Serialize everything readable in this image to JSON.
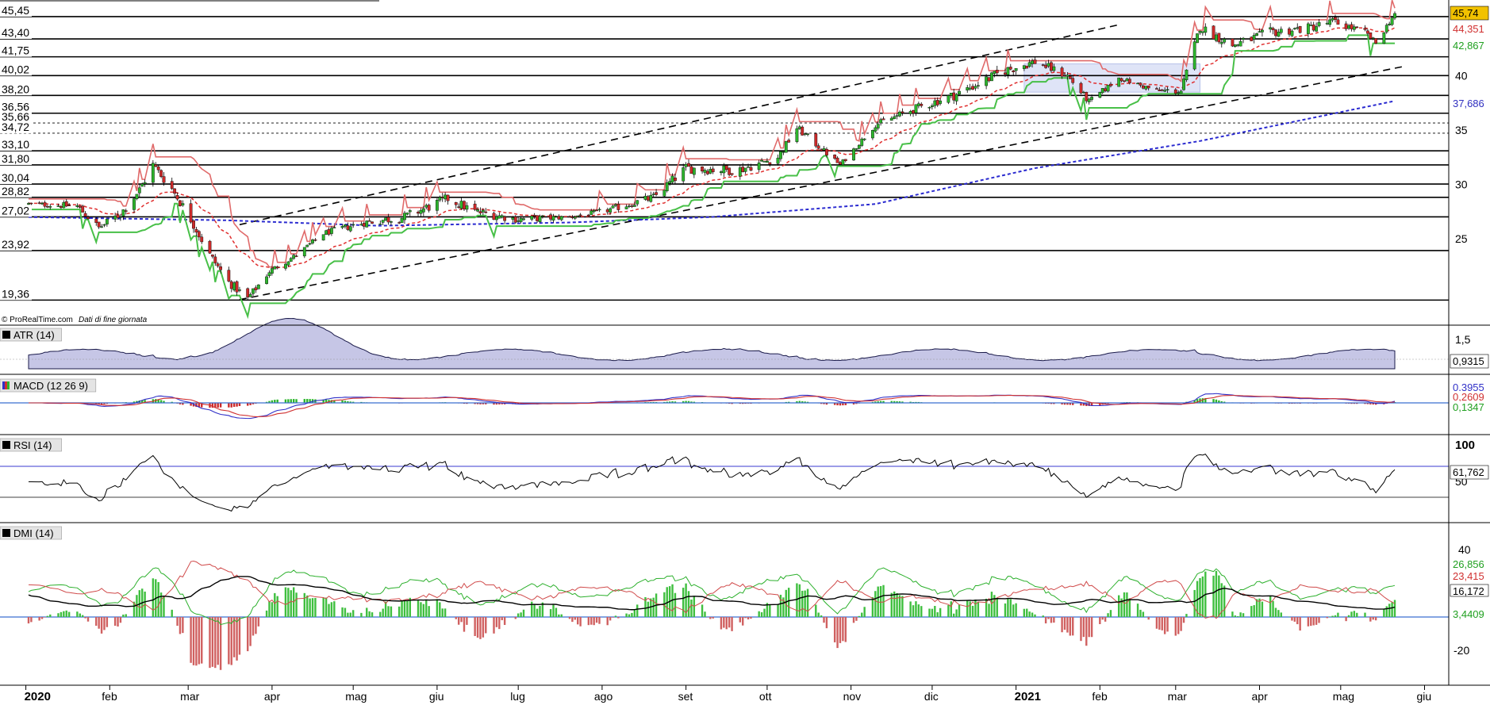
{
  "watermark": "© ProRealTime.com",
  "watermark_sub": "Dati di fine giornata",
  "x_axis": {
    "months": [
      "2020",
      "feb",
      "mar",
      "apr",
      "mag",
      "giu",
      "lug",
      "ago",
      "set",
      "ott",
      "nov",
      "dic",
      "2021",
      "feb",
      "mar",
      "apr",
      "mag",
      "giu"
    ],
    "bold_months": [
      "2020",
      "2021"
    ]
  },
  "price_panel": {
    "left_levels": [
      "45,45",
      "43,40",
      "41,75",
      "40,02",
      "38,20",
      "36,56",
      "35,66",
      "34,72",
      "33,10",
      "31,80",
      "30,04",
      "28,82",
      "27,02",
      "23,92",
      "19,36"
    ],
    "right_ticks": [
      "40",
      "35",
      "30",
      "25"
    ],
    "right_labels": [
      {
        "text": "45,74",
        "color": "#000000",
        "bg": "#f2c200"
      },
      {
        "text": "44,351",
        "color": "#d03030",
        "bg": "#ffffff"
      },
      {
        "text": "42,867",
        "color": "#20a020",
        "bg": "#ffffff"
      },
      {
        "text": "37,686",
        "color": "#3030c0",
        "bg": "#ffffff"
      }
    ]
  },
  "atr_panel": {
    "title": "ATR (14)",
    "tick": "1,5",
    "value_label": "0,9315"
  },
  "macd_panel": {
    "title": "MACD (12 26 9)",
    "value_labels": [
      "0,3955",
      "0,2609",
      "0,1347"
    ]
  },
  "rsi_panel": {
    "title": "RSI (14)",
    "ticks": [
      "100",
      "50"
    ],
    "value_label": "61,762"
  },
  "dmi_panel": {
    "title": "DMI (14)",
    "ticks": [
      "40",
      "-20"
    ],
    "value_labels": [
      "26,856",
      "23,415",
      "16,172",
      "3,4409"
    ]
  },
  "colors": {
    "up": "#2db52d",
    "down": "#cc2a2a",
    "ma_red": "#e03030",
    "ma_blue": "#2b2bd0",
    "atr_fill": "#9a9ad0",
    "grid": "#000000"
  },
  "chart_data": {
    "type": "candlestick",
    "price_anchors": [
      [
        "2020-01-02",
        28.2
      ],
      [
        "2020-01-20",
        28.0
      ],
      [
        "2020-01-28",
        26.0
      ],
      [
        "2020-02-05",
        27.3
      ],
      [
        "2020-02-12",
        29.5
      ],
      [
        "2020-02-17",
        31.8
      ],
      [
        "2020-02-24",
        29.6
      ],
      [
        "2020-03-02",
        26.8
      ],
      [
        "2020-03-09",
        23.5
      ],
      [
        "2020-03-16",
        21.0
      ],
      [
        "2020-03-23",
        19.5
      ],
      [
        "2020-03-31",
        22.0
      ],
      [
        "2020-04-10",
        23.5
      ],
      [
        "2020-04-20",
        25.5
      ],
      [
        "2020-05-05",
        26.5
      ],
      [
        "2020-05-20",
        27.0
      ],
      [
        "2020-06-05",
        28.7
      ],
      [
        "2020-06-15",
        27.5
      ],
      [
        "2020-07-01",
        26.8
      ],
      [
        "2020-07-20",
        27.0
      ],
      [
        "2020-08-01",
        27.5
      ],
      [
        "2020-08-20",
        28.8
      ],
      [
        "2020-09-01",
        31.5
      ],
      [
        "2020-09-20",
        31.3
      ],
      [
        "2020-10-05",
        32.5
      ],
      [
        "2020-10-12",
        35.2
      ],
      [
        "2020-10-28",
        31.8
      ],
      [
        "2020-11-10",
        35.5
      ],
      [
        "2020-11-25",
        37.0
      ],
      [
        "2020-12-10",
        38.3
      ],
      [
        "2020-12-28",
        40.5
      ],
      [
        "2021-01-08",
        41.3
      ],
      [
        "2021-01-20",
        40.0
      ],
      [
        "2021-01-28",
        37.6
      ],
      [
        "2021-02-08",
        39.8
      ],
      [
        "2021-02-22",
        38.6
      ],
      [
        "2021-03-03",
        38.6
      ],
      [
        "2021-03-10",
        44.5
      ],
      [
        "2021-03-22",
        42.8
      ],
      [
        "2021-04-05",
        44.0
      ],
      [
        "2021-04-19",
        44.4
      ],
      [
        "2021-04-28",
        45.0
      ],
      [
        "2021-05-10",
        44.0
      ],
      [
        "2021-05-14",
        43.0
      ],
      [
        "2021-05-21",
        45.74
      ]
    ],
    "moving_average_long_anchors": [
      [
        "2020-01-02",
        27.0
      ],
      [
        "2020-03-16",
        26.7
      ],
      [
        "2020-05-10",
        26.2
      ],
      [
        "2020-07-20",
        26.5
      ],
      [
        "2020-09-10",
        27.0
      ],
      [
        "2020-11-10",
        28.2
      ],
      [
        "2021-01-08",
        31.5
      ],
      [
        "2021-03-10",
        34.0
      ],
      [
        "2021-05-21",
        37.686
      ]
    ],
    "last_values": {
      "close": 45.74,
      "ma_red": 44.351,
      "stop_green": 42.867,
      "ma_blue": 37.686,
      "atr": 0.9315,
      "macd": 0.3955,
      "macd_signal": 0.2609,
      "macd_hist": 0.1347,
      "rsi": 61.762,
      "di_plus": 26.856,
      "di_minus": 23.415,
      "adx": 16.172,
      "dmi_hist": 3.4409
    }
  }
}
